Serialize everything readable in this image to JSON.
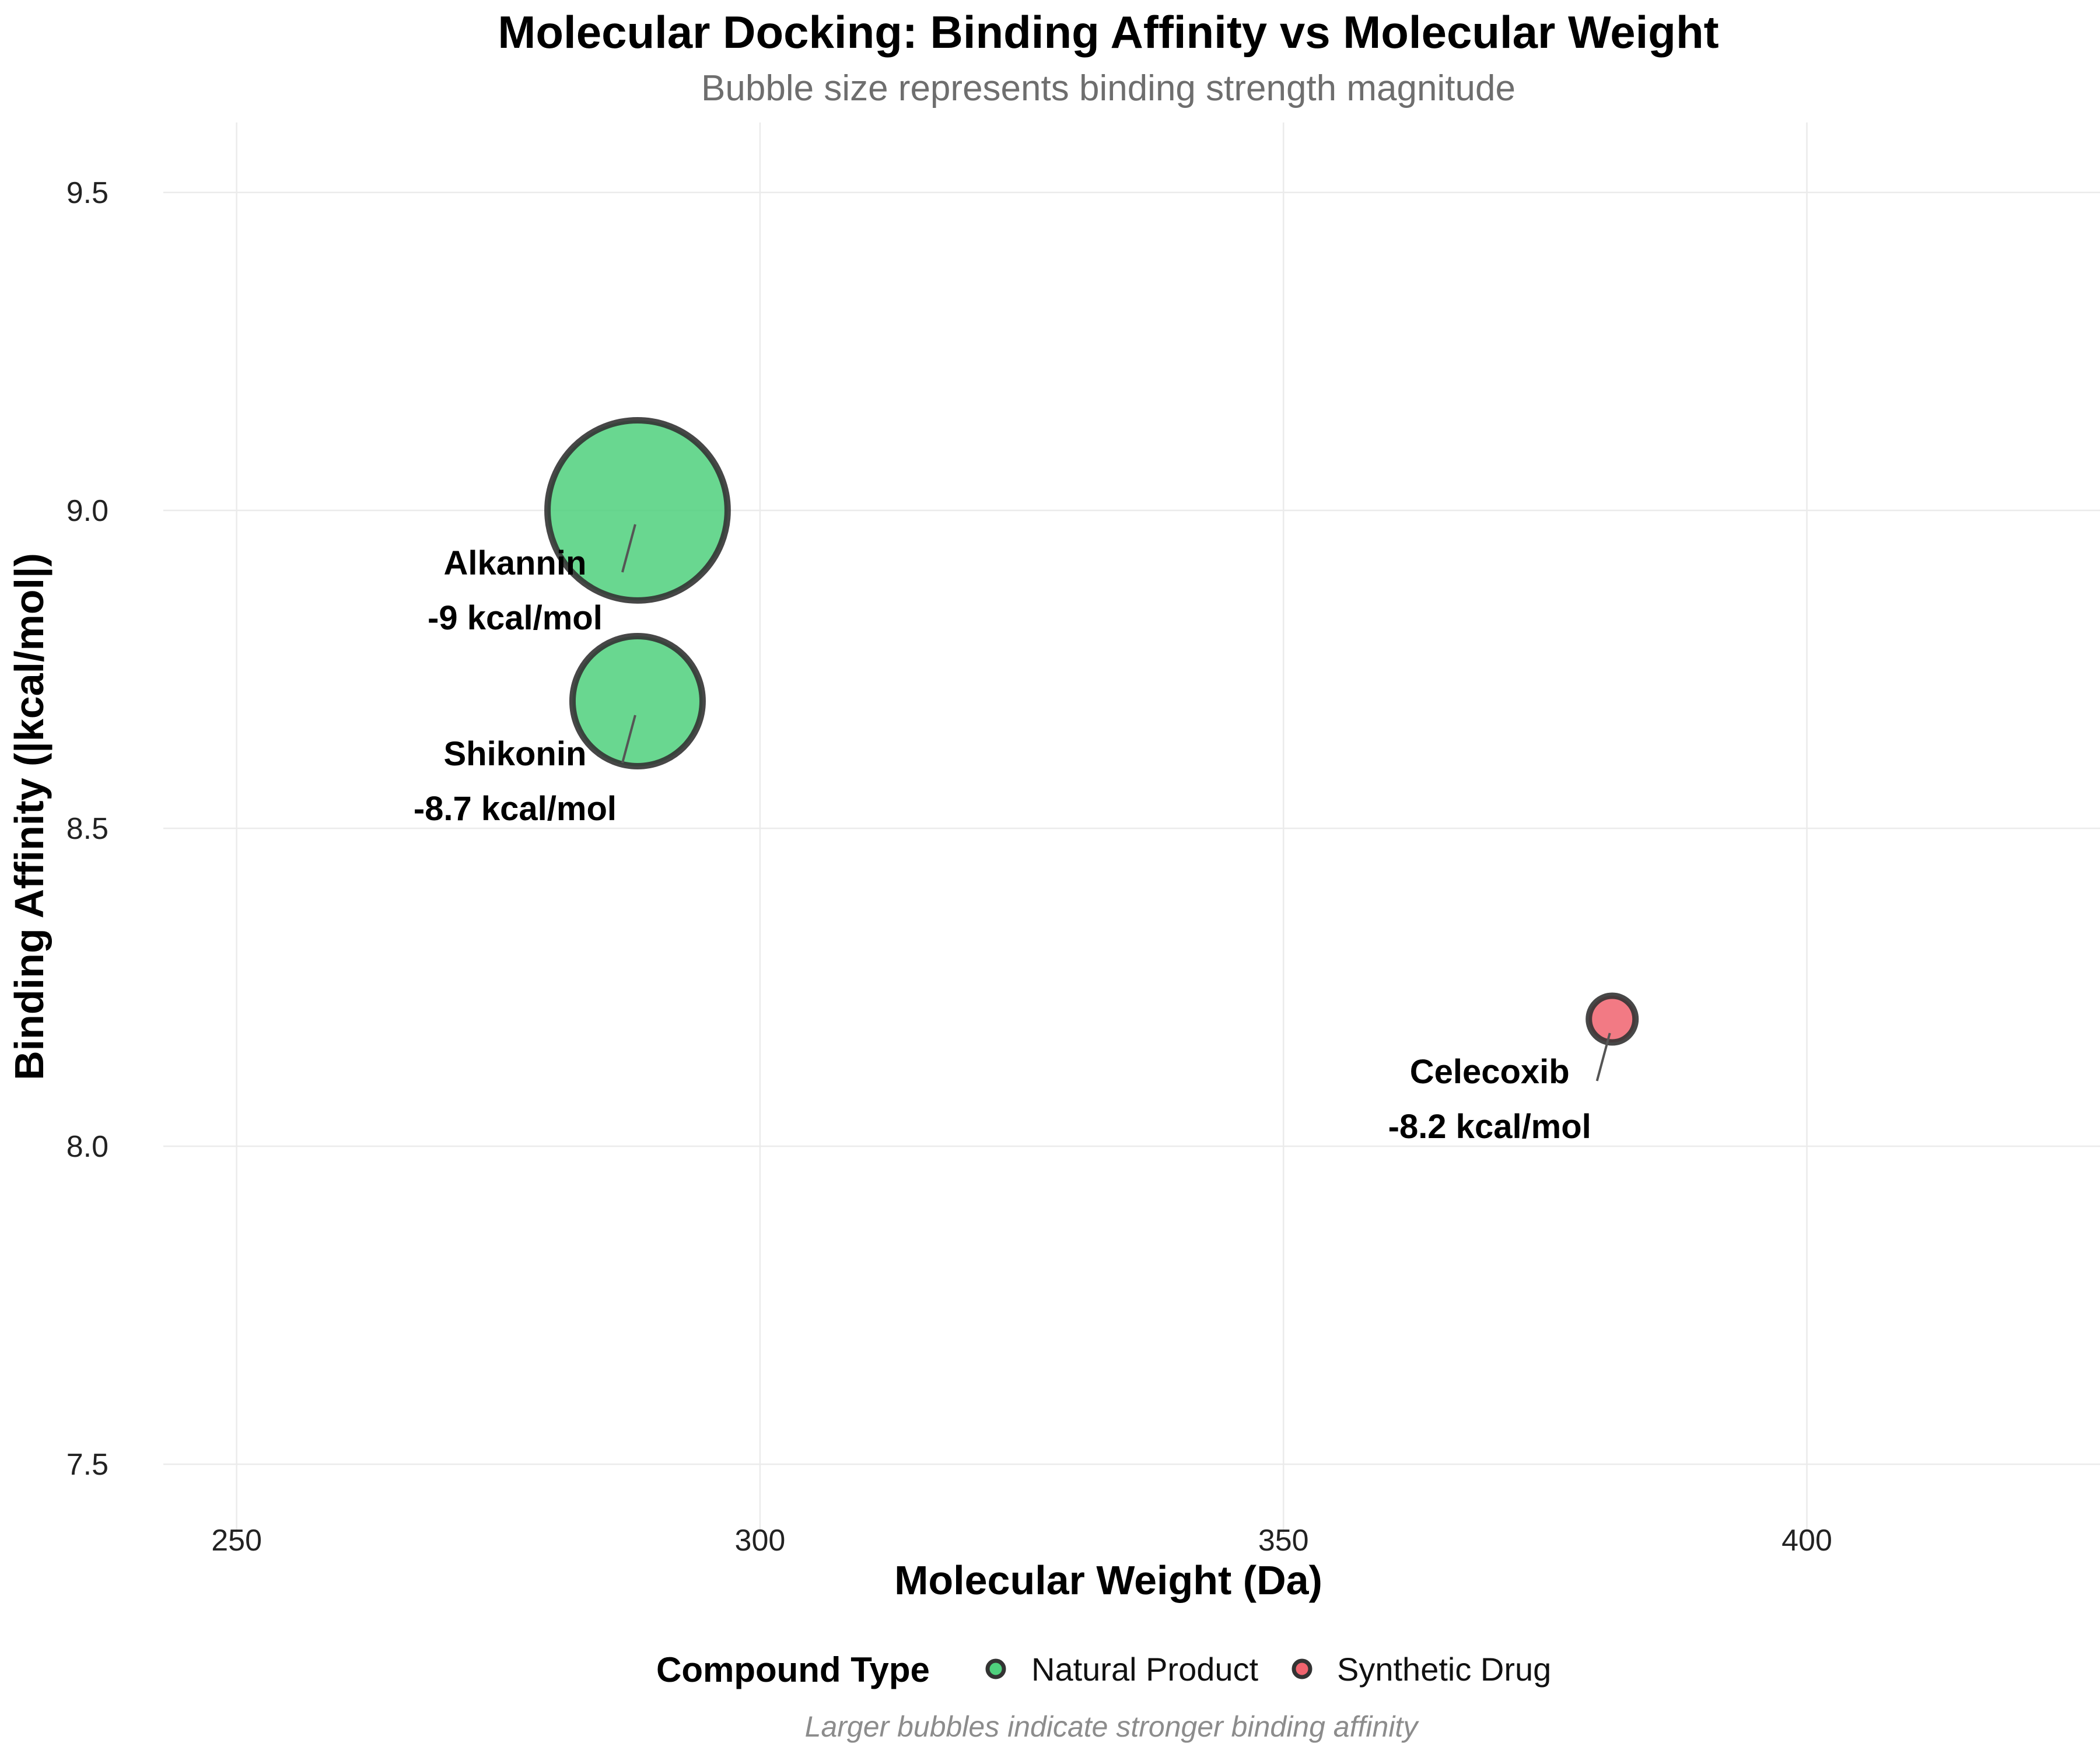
{
  "chart_data": {
    "type": "scatter",
    "title": "Molecular Docking: Binding Affinity vs Molecular Weight",
    "subtitle": "Bubble size represents binding strength magnitude",
    "xlabel": "Molecular Weight (Da)",
    "ylabel": "Binding Affinity (|kcal/mol|)",
    "xlim": [
      243,
      428
    ],
    "ylim": [
      7.39,
      9.61
    ],
    "x_ticks": [
      "250",
      "300",
      "350",
      "400"
    ],
    "y_ticks": [
      "7.5",
      "8.0",
      "8.5",
      "9.0",
      "9.5"
    ],
    "grid": true,
    "legend_title": "Compound Type",
    "legend_position": "bottom",
    "caption": "Larger bubbles indicate stronger binding affinity",
    "series": [
      {
        "name": "Natural Product",
        "color": "#4fd07d"
      },
      {
        "name": "Synthetic Drug",
        "color": "#f0636e"
      }
    ],
    "points": [
      {
        "name": "Alkannin",
        "series": "Natural Product",
        "x": 288.3,
        "y": 9.0,
        "label": "-9 kcal/mol"
      },
      {
        "name": "Shikonin",
        "series": "Natural Product",
        "x": 288.3,
        "y": 8.7,
        "label": "-8.7 kcal/mol"
      },
      {
        "name": "Celecoxib",
        "series": "Synthetic Drug",
        "x": 381.4,
        "y": 8.2,
        "label": "-8.2 kcal/mol"
      }
    ]
  }
}
